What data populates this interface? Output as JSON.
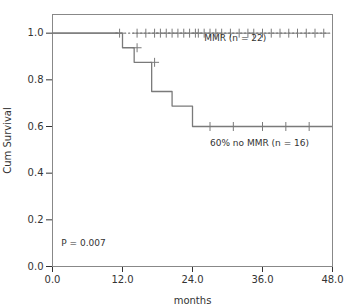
{
  "chart_data": {
    "type": "line",
    "xlabel": "months",
    "ylabel": "Cum Survival",
    "color": "#7a7a7a",
    "xlim": [
      0.0,
      48.0
    ],
    "ylim": [
      0.0,
      1.08
    ],
    "xticks": [
      {
        "value": 0.0,
        "label": "0.0"
      },
      {
        "value": 12.0,
        "label": "12.0"
      },
      {
        "value": 24.0,
        "label": "24.0"
      },
      {
        "value": 36.0,
        "label": "36.0"
      },
      {
        "value": 48.0,
        "label": "48.0"
      }
    ],
    "yticks": [
      {
        "value": 0.0,
        "label": "0.0"
      },
      0.2,
      0.4,
      0.6,
      0.8,
      {
        "value": 1.0,
        "label": "1.0"
      }
    ],
    "grid": false,
    "series": [
      {
        "type": "line",
        "line_style": "solid",
        "x": [
          0,
          12.0,
          12.0,
          14.0,
          14.0,
          17.0,
          17.0,
          20.5,
          20.5,
          24.0,
          24.0,
          48.0
        ],
        "values": [
          1.0,
          1.0,
          0.9375,
          0.9375,
          0.875,
          0.875,
          0.75,
          0.75,
          0.6875,
          0.6875,
          0.6,
          0.6
        ]
      },
      {
        "type": "scatter",
        "marker": "plus",
        "x": [
          14.5,
          17.5
        ],
        "values": [
          0.9375,
          0.875
        ]
      },
      {
        "type": "scatter",
        "marker": "plus",
        "x": [
          27.0,
          31.0,
          36.0,
          40.0,
          44.0
        ],
        "values": [
          0.6,
          0.6,
          0.6,
          0.6,
          0.6
        ]
      },
      {
        "type": "line",
        "line_style": "solid",
        "x": [
          0,
          11.0
        ],
        "values": [
          1.0,
          1.0
        ]
      },
      {
        "type": "line",
        "line_style": "dotted",
        "x": [
          11.0,
          48.0
        ],
        "values": [
          1.0,
          1.0
        ]
      },
      {
        "type": "scatter",
        "marker": "plus",
        "x": [
          11.5,
          14.5,
          16.0,
          17.5,
          18.5,
          19.5,
          20.5,
          21.5,
          22.5,
          23.5,
          24.5,
          25.0,
          26.0,
          27.0,
          28.0,
          29.0,
          30.5,
          32.0,
          33.5,
          34.5,
          36.0,
          37.5,
          39.0,
          40.5,
          42.0,
          43.5,
          45.0,
          46.5
        ],
        "values": [
          1.0,
          1.0,
          1.0,
          1.0,
          1.0,
          1.0,
          1.0,
          1.0,
          1.0,
          1.0,
          1.0,
          1.0,
          1.0,
          1.0,
          1.0,
          1.0,
          1.0,
          1.0,
          1.0,
          1.0,
          1.0,
          1.0,
          1.0,
          1.0,
          1.0,
          1.0,
          1.0,
          1.0
        ]
      }
    ],
    "annotations": [
      {
        "text": "MMR (n = 22)",
        "x": 26,
        "y": 0.965
      },
      {
        "text": "60% no MMR (n = 16)",
        "x": 27,
        "y": 0.515
      },
      {
        "text": "P = 0.007",
        "x": 1.5,
        "y": 0.09
      }
    ]
  }
}
